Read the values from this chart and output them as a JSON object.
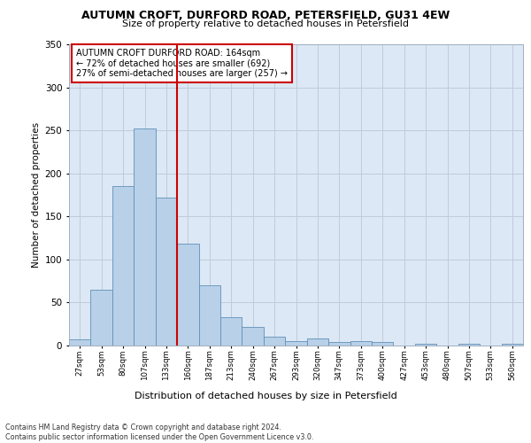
{
  "title1": "AUTUMN CROFT, DURFORD ROAD, PETERSFIELD, GU31 4EW",
  "title2": "Size of property relative to detached houses in Petersfield",
  "xlabel": "Distribution of detached houses by size in Petersfield",
  "ylabel": "Number of detached properties",
  "bar_values": [
    7,
    65,
    185,
    252,
    172,
    118,
    70,
    33,
    22,
    10,
    5,
    8,
    4,
    5,
    4,
    0,
    2,
    0,
    2,
    0,
    2
  ],
  "bin_labels": [
    "27sqm",
    "53sqm",
    "80sqm",
    "107sqm",
    "133sqm",
    "160sqm",
    "187sqm",
    "213sqm",
    "240sqm",
    "267sqm",
    "293sqm",
    "320sqm",
    "347sqm",
    "373sqm",
    "400sqm",
    "427sqm",
    "453sqm",
    "480sqm",
    "507sqm",
    "533sqm",
    "560sqm"
  ],
  "bar_color": "#b8d0e8",
  "bar_edge_color": "#6090b8",
  "vline_x": 5,
  "vline_color": "#cc0000",
  "annotation_text": "AUTUMN CROFT DURFORD ROAD: 164sqm\n← 72% of detached houses are smaller (692)\n27% of semi-detached houses are larger (257) →",
  "annotation_box_color": "#ffffff",
  "annotation_box_edge": "#cc0000",
  "ylim": [
    0,
    350
  ],
  "yticks": [
    0,
    50,
    100,
    150,
    200,
    250,
    300,
    350
  ],
  "footer": "Contains HM Land Registry data © Crown copyright and database right 2024.\nContains public sector information licensed under the Open Government Licence v3.0.",
  "plot_bg_color": "#dce8f5"
}
